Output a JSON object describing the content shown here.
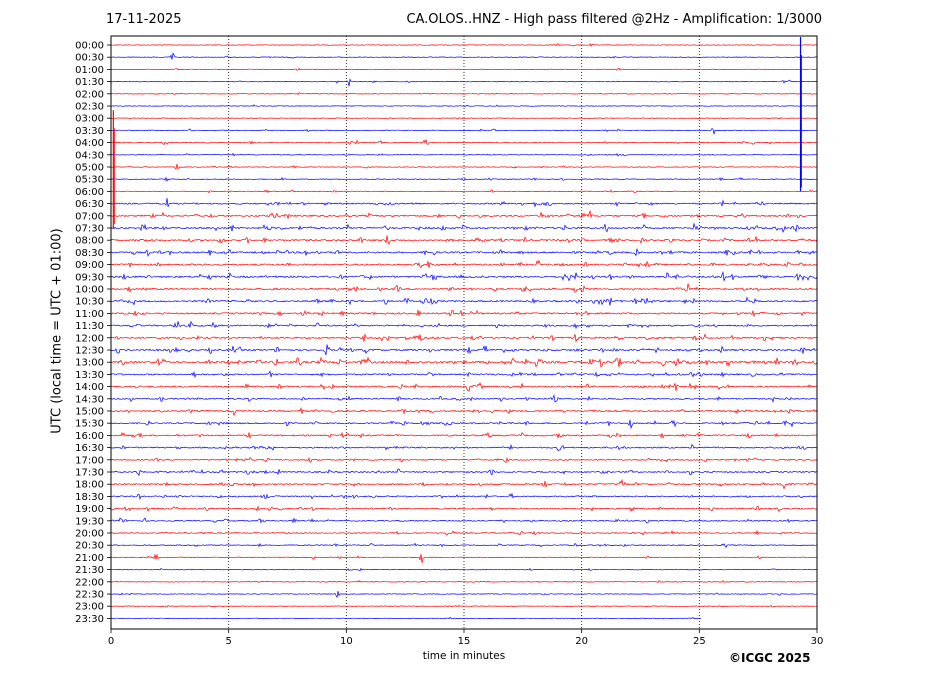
{
  "header": {
    "date": "17-11-2025",
    "title": "CA.OLOS..HNZ - High pass filtered @2Hz - Amplification: 1/3000"
  },
  "footer": {
    "copyright": "©ICGC 2025"
  },
  "chart_data": {
    "type": "line",
    "title": "CA.OLOS..HNZ - High pass filtered @2Hz - Amplification: 1/3000",
    "xlabel": "time in minutes",
    "ylabel": "UTC (local time = UTC + 01:00)",
    "xlim": [
      0,
      30
    ],
    "x_ticks": [
      0,
      5,
      10,
      15,
      20,
      25,
      30
    ],
    "x_tick_labels": [
      "0",
      "5",
      "10",
      "15",
      "20",
      "25",
      "30"
    ],
    "rows": [
      "00:00",
      "00:30",
      "01:00",
      "01:30",
      "02:00",
      "02:30",
      "03:00",
      "03:30",
      "04:00",
      "04:30",
      "05:00",
      "05:30",
      "06:00",
      "06:30",
      "07:00",
      "07:30",
      "08:00",
      "08:30",
      "09:00",
      "09:30",
      "10:00",
      "10:30",
      "11:00",
      "11:30",
      "12:00",
      "12:30",
      "13:00",
      "13:30",
      "14:00",
      "14:30",
      "15:00",
      "15:30",
      "16:00",
      "16:30",
      "17:00",
      "17:30",
      "18:00",
      "18:30",
      "19:00",
      "19:30",
      "20:00",
      "20:30",
      "21:00",
      "21:30",
      "22:00",
      "22:30",
      "23:00",
      "23:30"
    ],
    "trace_colors": [
      "#ff0000",
      "#0000ff"
    ],
    "grid": "vertical dotted at every 5 minutes",
    "last_row_end_minute": 25.1,
    "activity_level": [
      0.05,
      0.08,
      0.06,
      0.1,
      0.05,
      0.05,
      0.06,
      0.12,
      0.2,
      0.1,
      0.12,
      0.15,
      0.15,
      0.45,
      0.55,
      0.6,
      0.6,
      0.6,
      0.55,
      0.65,
      0.55,
      0.6,
      0.55,
      0.5,
      0.55,
      0.6,
      0.85,
      0.5,
      0.5,
      0.45,
      0.45,
      0.45,
      0.45,
      0.45,
      0.4,
      0.4,
      0.45,
      0.4,
      0.4,
      0.35,
      0.25,
      0.25,
      0.15,
      0.12,
      0.08,
      0.1,
      0.05,
      0.05
    ],
    "events": [
      {
        "row": "00:30",
        "minute": 2.6
      },
      {
        "row": "01:30",
        "minute": 10.1
      },
      {
        "row": "03:30",
        "minute": 25.6
      },
      {
        "row": "04:00",
        "minute": 2.3
      },
      {
        "row": "04:00",
        "minute": 13.4
      },
      {
        "row": "05:00",
        "minute": 2.8
      },
      {
        "row": "05:30",
        "minute": 2.4
      },
      {
        "row": "07:30",
        "minute": 24.8
      },
      {
        "row": "07:30",
        "minute": 28.6
      },
      {
        "row": "09:30",
        "minute": 19.8
      },
      {
        "row": "10:30",
        "minute": 27.0
      },
      {
        "row": "12:00",
        "minute": 25.2
      },
      {
        "row": "12:00",
        "minute": 24.8
      },
      {
        "row": "12:30",
        "minute": 9.2
      },
      {
        "row": "14:00",
        "minute": 15.2
      },
      {
        "row": "14:00",
        "minute": 24.0
      },
      {
        "row": "15:30",
        "minute": 22.1
      },
      {
        "row": "18:00",
        "minute": 21.7
      },
      {
        "row": "20:30",
        "minute": 19.7
      },
      {
        "row": "21:00",
        "minute": 1.9
      },
      {
        "row": "21:00",
        "minute": 13.2
      },
      {
        "row": "22:30",
        "minute": 9.6
      }
    ],
    "spikes": [
      {
        "row": "00:00",
        "minute": 29.3,
        "color": "#0000ff",
        "extends_to_row": "06:00"
      },
      {
        "row": "03:00",
        "minute": 0.1,
        "color": "#ff0000",
        "extends_to_row": "07:30"
      }
    ]
  }
}
